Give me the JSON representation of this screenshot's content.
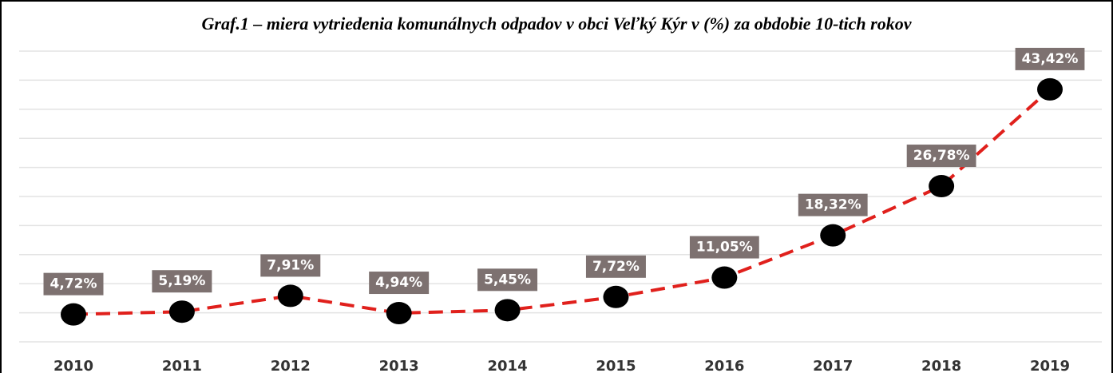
{
  "chart_data": {
    "type": "line",
    "title": "Graf.1 – miera vytriedenia komunálnych odpadov v obci Veľký Kýr v (%) za obdobie 10-tich rokov",
    "categories": [
      "2010",
      "2011",
      "2012",
      "2013",
      "2014",
      "2015",
      "2016",
      "2017",
      "2018",
      "2019"
    ],
    "series": [
      {
        "name": "miera vytriedenia",
        "color": "#e0201c",
        "marker_color": "#000000",
        "values": [
          4.72,
          5.19,
          7.91,
          4.94,
          5.45,
          7.72,
          11.05,
          18.32,
          26.78,
          43.42
        ],
        "value_labels": [
          "4,72%",
          "5,19%",
          "7,91%",
          "4,94%",
          "5,45%",
          "7,72%",
          "11,05%",
          "18,32%",
          "26,78%",
          "43,42%"
        ]
      }
    ],
    "ylim": [
      0,
      50
    ],
    "yticks": [
      0,
      5,
      10,
      15,
      20,
      25,
      30,
      35,
      40,
      45,
      50
    ],
    "grid": true
  }
}
